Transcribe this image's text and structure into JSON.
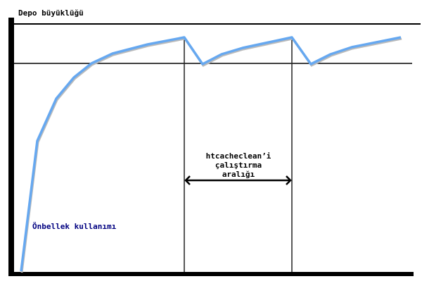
{
  "diagram": {
    "y_axis_label": "Depo büyüklüğü",
    "curve_label": "Önbellek kullanımı",
    "interval_label": [
      "htcacheclean’i",
      "çalıştırma",
      "aralığı"
    ],
    "colors": {
      "curve": "#66a8f0",
      "axes": "#000000",
      "curve_label": "#000080"
    }
  }
}
